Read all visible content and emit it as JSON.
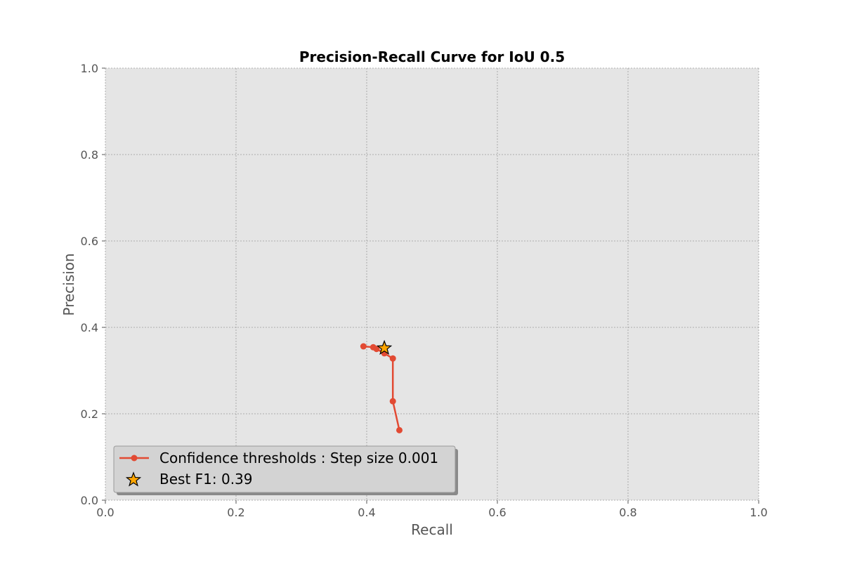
{
  "chart_data": {
    "type": "line",
    "title": "Precision-Recall Curve for IoU 0.5",
    "xlabel": "Recall",
    "ylabel": "Precision",
    "xlim": [
      0.0,
      1.0
    ],
    "ylim": [
      0.0,
      1.0
    ],
    "xticks": [
      "0.0",
      "0.2",
      "0.4",
      "0.6",
      "0.8",
      "1.0"
    ],
    "yticks": [
      "0.0",
      "0.2",
      "0.4",
      "0.6",
      "0.8",
      "1.0"
    ],
    "grid": true,
    "legend_position": "lower-left",
    "series": [
      {
        "name": "Confidence thresholds : Step size 0.001",
        "color": "#E24A33",
        "marker": "circle",
        "x": [
          0.395,
          0.41,
          0.415,
          0.427,
          0.44,
          0.44,
          0.45
        ],
        "y": [
          0.356,
          0.354,
          0.35,
          0.34,
          0.328,
          0.229,
          0.162
        ]
      }
    ],
    "best_point": {
      "name": "Best F1: 0.39",
      "marker": "star",
      "color": "#FFA500",
      "x": 0.427,
      "y": 0.352
    }
  }
}
